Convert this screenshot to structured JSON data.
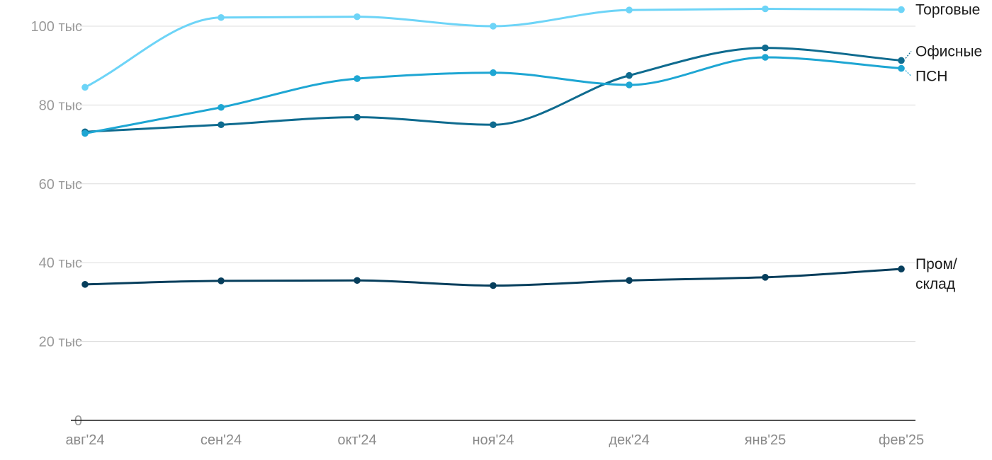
{
  "chart_data": {
    "type": "line",
    "title": "",
    "xlabel": "",
    "ylabel": "",
    "categories": [
      "авг'24",
      "сен'24",
      "окт'24",
      "ноя'24",
      "дек'24",
      "янв'25",
      "фев'25"
    ],
    "yticks": [
      {
        "value": 0,
        "label": "0"
      },
      {
        "value": 20000,
        "label": "20 тыс"
      },
      {
        "value": 40000,
        "label": "40 тыс"
      },
      {
        "value": 60000,
        "label": "60 тыс"
      },
      {
        "value": 80000,
        "label": "80 тыс"
      },
      {
        "value": 100000,
        "label": "100 тыс"
      }
    ],
    "ylim": [
      0,
      100000
    ],
    "grid": true,
    "legend": "inline labels at right end of lines",
    "series": [
      {
        "name": "Торговые",
        "label_lines": [
          "Торговые"
        ],
        "color": "#6dd4f7",
        "values": [
          84500,
          102200,
          102400,
          100000,
          104100,
          104400,
          104200
        ]
      },
      {
        "name": "Офисные",
        "label_lines": [
          "Офисные"
        ],
        "color": "#0f6b8f",
        "values": [
          73200,
          75000,
          76900,
          75000,
          87500,
          94500,
          91300
        ]
      },
      {
        "name": "ПСН",
        "label_lines": [
          "ПСН"
        ],
        "color": "#1ea6d3",
        "values": [
          72800,
          79400,
          86700,
          88200,
          85100,
          92100,
          89300
        ]
      },
      {
        "name": "Пром/склад",
        "label_lines": [
          "Пром/",
          "склад"
        ],
        "color": "#063e5c",
        "values": [
          34500,
          35400,
          35500,
          34200,
          35500,
          36300,
          38400
        ]
      }
    ]
  }
}
